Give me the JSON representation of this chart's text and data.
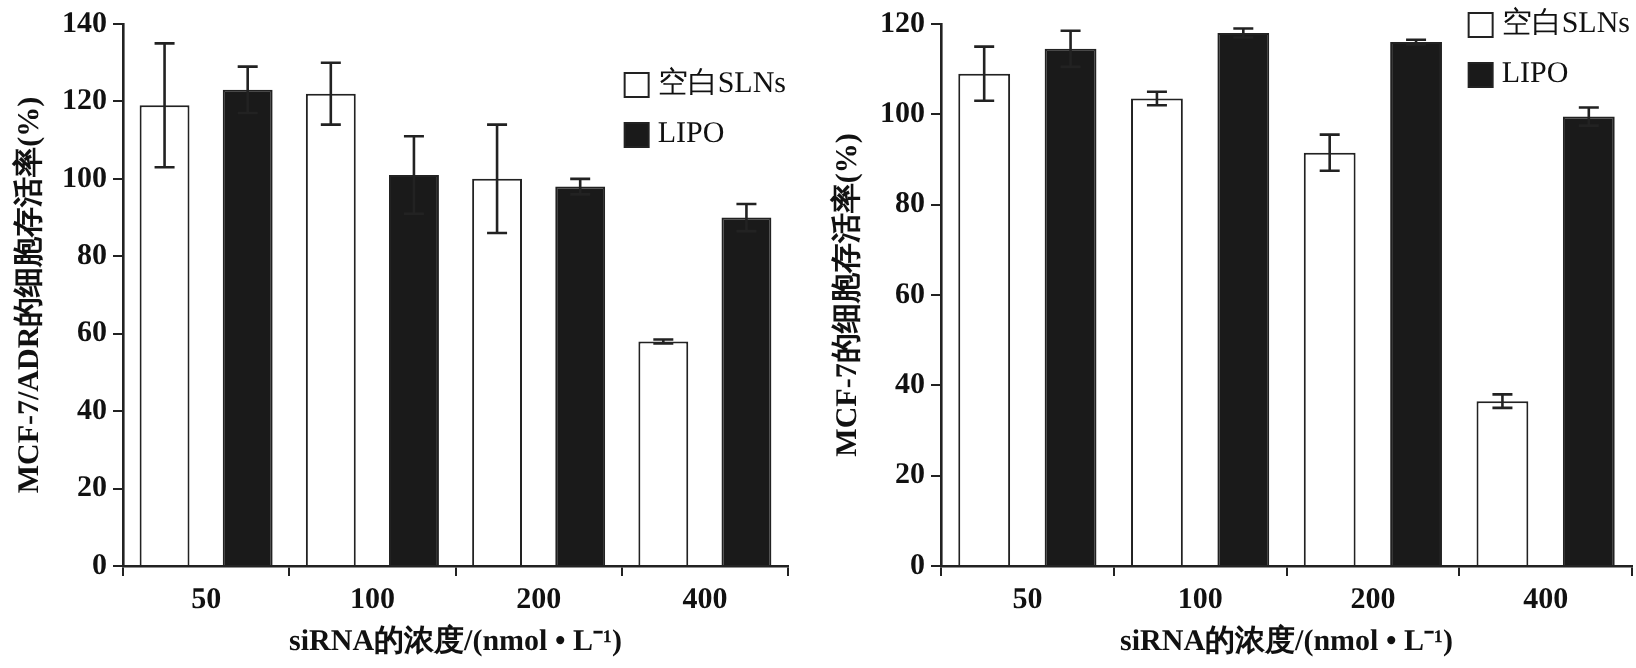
{
  "chart_data": [
    {
      "type": "bar",
      "xlabel": "siRNA的浓度/(nmol • L⁻¹)",
      "ylabel": "MCF-7/ADR的细胞存活率(%)",
      "categories": [
        "50",
        "100",
        "200",
        "400"
      ],
      "ylim": [
        0,
        140
      ],
      "yticks": [
        0,
        20,
        40,
        60,
        80,
        100,
        120,
        140
      ],
      "grid": false,
      "legend": "top right",
      "series": [
        {
          "name": "空白SLNs",
          "color": "#ffffff",
          "values": [
            119,
            122,
            100,
            58
          ],
          "errors": [
            16,
            8,
            14,
            0.5
          ]
        },
        {
          "name": "LIPO",
          "color": "#1a1a1a",
          "values": [
            123,
            101,
            98,
            90
          ],
          "errors": [
            6,
            10,
            2,
            3.5
          ]
        }
      ]
    },
    {
      "type": "bar",
      "xlabel": "siRNA的浓度/(nmol • L⁻¹)",
      "ylabel": "MCF-7的细胞存活率(%)",
      "categories": [
        "50",
        "100",
        "200",
        "400"
      ],
      "ylim": [
        0,
        120
      ],
      "yticks": [
        0,
        20,
        40,
        60,
        80,
        100,
        120
      ],
      "grid": false,
      "legend": "top right",
      "series": [
        {
          "name": "空白SLNs",
          "color": "#ffffff",
          "values": [
            109,
            103.5,
            91.5,
            36.5
          ],
          "errors": [
            6,
            1.5,
            4,
            1.5
          ]
        },
        {
          "name": "LIPO",
          "color": "#1a1a1a",
          "values": [
            114.5,
            118,
            116,
            99.5
          ],
          "errors": [
            4,
            1,
            0.5,
            2
          ]
        }
      ]
    }
  ]
}
